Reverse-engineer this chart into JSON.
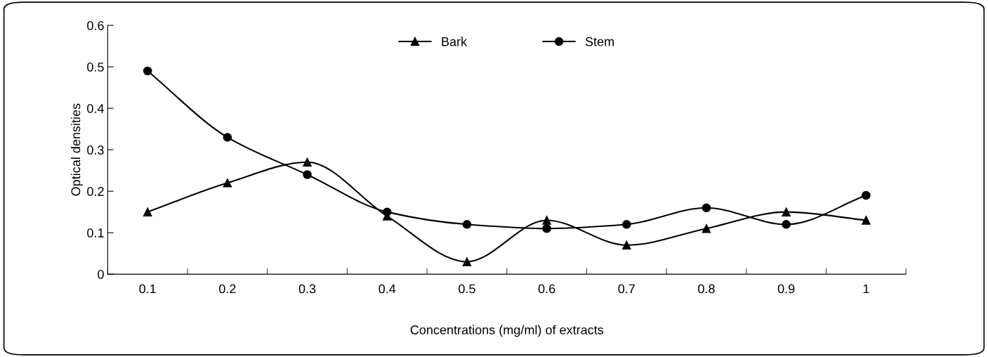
{
  "chart_data": {
    "type": "line",
    "xlabel": "Concentrations (mg/ml) of extracts",
    "ylabel": "Optical densities",
    "categories": [
      "0.1",
      "0.2",
      "0.3",
      "0.4",
      "0.5",
      "0.6",
      "0.7",
      "0.8",
      "0.9",
      "1"
    ],
    "series": [
      {
        "name": "Bark",
        "color": "#000000",
        "marker": "triangle",
        "values": [
          0.15,
          0.22,
          0.27,
          0.14,
          0.03,
          0.13,
          0.07,
          0.11,
          0.15,
          0.13
        ]
      },
      {
        "name": "Stem",
        "color": "#000000",
        "marker": "circle",
        "values": [
          0.49,
          0.33,
          0.24,
          0.15,
          0.12,
          0.11,
          0.12,
          0.16,
          0.12,
          0.19
        ]
      }
    ],
    "ylim": [
      0,
      0.6
    ],
    "yticks": [
      0,
      0.1,
      0.2,
      0.3,
      0.4,
      0.5,
      0.6
    ],
    "grid": false,
    "legend": "top",
    "line_style": "solid"
  }
}
